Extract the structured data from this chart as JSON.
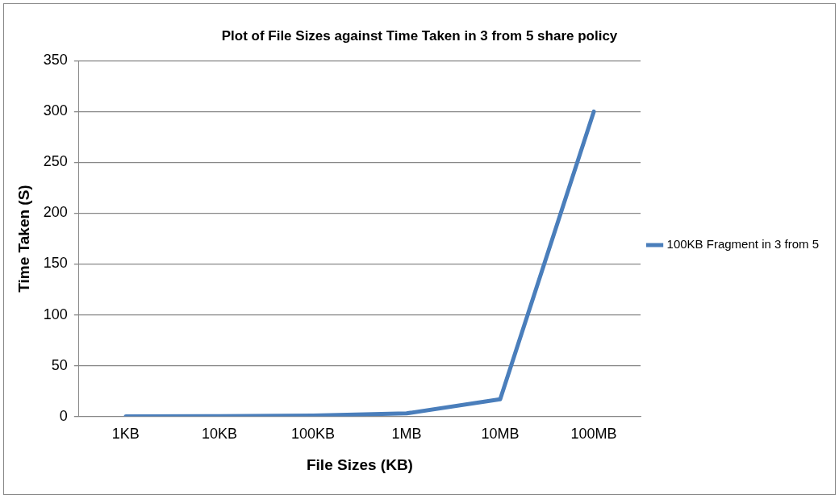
{
  "chart_data": {
    "type": "line",
    "title": "Plot of File Sizes against Time Taken in 3 from 5 share policy",
    "xlabel": "File Sizes (KB)",
    "ylabel": "Time Taken (S)",
    "categories": [
      "1KB",
      "10KB",
      "100KB",
      "1MB",
      "10MB",
      "100MB"
    ],
    "series": [
      {
        "name": "100KB Fragment in 3 from 5",
        "color": "#4a7ebb",
        "values": [
          0.1,
          0.3,
          0.8,
          3,
          17,
          300
        ]
      }
    ],
    "ylim": [
      0,
      350
    ],
    "yticks": [
      0,
      50,
      100,
      150,
      200,
      250,
      300,
      350
    ],
    "grid": "y",
    "legend": "right",
    "marker": "none",
    "line_style": "solid"
  }
}
